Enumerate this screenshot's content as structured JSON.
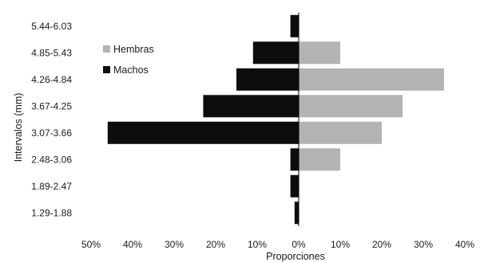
{
  "chart_data": {
    "type": "bar",
    "orientation": "horizontal-population-pyramid",
    "categories": [
      "5.44-6.03",
      "4.85-5.43",
      "4.26-4.84",
      "3.67-4.25",
      "3.07-3.66",
      "2.48-3.06",
      "1.89-2.47",
      "1.29-1.88"
    ],
    "series": [
      {
        "name": "Hembras",
        "side": "right",
        "color": "#b3b3b3",
        "values": [
          0,
          10,
          35,
          25,
          20,
          10,
          0,
          0
        ]
      },
      {
        "name": "Machos",
        "side": "left",
        "color": "#0d0d0d",
        "values": [
          2,
          11,
          15,
          23,
          46,
          2,
          2,
          1
        ]
      }
    ],
    "xticks": [
      "50%",
      "40%",
      "30%",
      "20%",
      "10%",
      "0%",
      "10%",
      "20%",
      "30%",
      "40%"
    ],
    "xlim": [
      -50,
      40
    ],
    "xlabel": "Proporciones",
    "ylabel": "Intervalos (mm)",
    "legend_position": "top-left",
    "grid": false
  }
}
